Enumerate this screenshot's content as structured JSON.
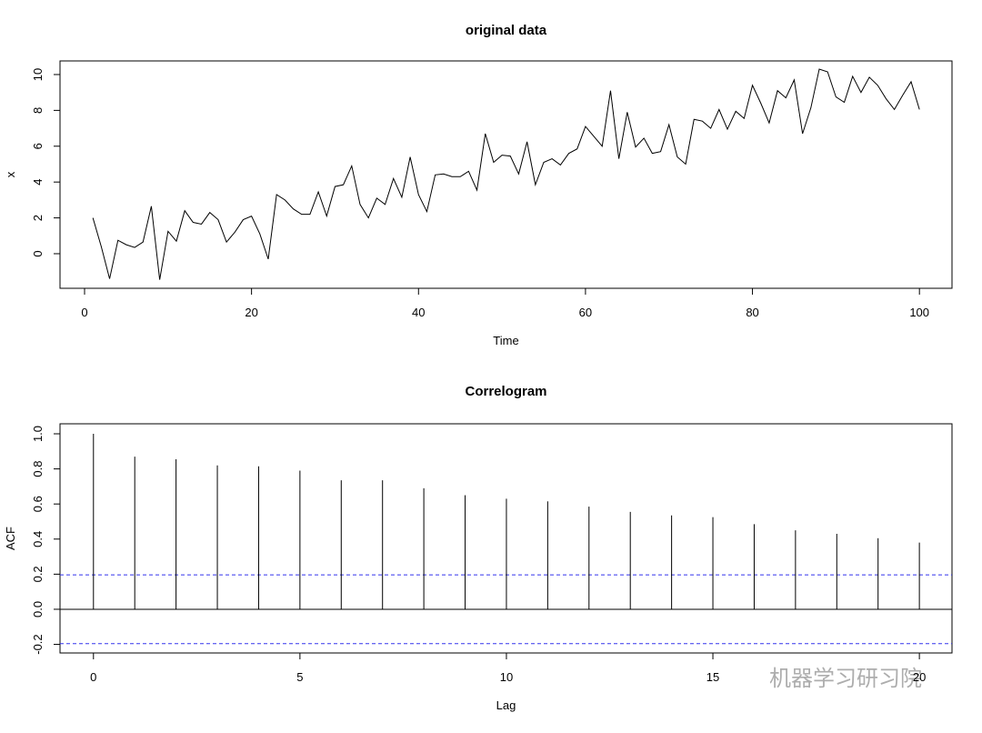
{
  "chart_data": [
    {
      "type": "line",
      "title": "original data",
      "x_label": "Time",
      "y_label": "x",
      "x": [
        1,
        2,
        3,
        4,
        5,
        6,
        7,
        8,
        9,
        10,
        11,
        12,
        13,
        14,
        15,
        16,
        17,
        18,
        19,
        20,
        21,
        22,
        23,
        24,
        25,
        26,
        27,
        28,
        29,
        30,
        31,
        32,
        33,
        34,
        35,
        36,
        37,
        38,
        39,
        40,
        41,
        42,
        43,
        44,
        45,
        46,
        47,
        48,
        49,
        50,
        51,
        52,
        53,
        54,
        55,
        56,
        57,
        58,
        59,
        60,
        61,
        62,
        63,
        64,
        65,
        66,
        67,
        68,
        69,
        70,
        71,
        72,
        73,
        74,
        75,
        76,
        77,
        78,
        79,
        80,
        81,
        82,
        83,
        84,
        85,
        86,
        87,
        88,
        89,
        90,
        91,
        92,
        93,
        94,
        95,
        96,
        97,
        98,
        99,
        100
      ],
      "series": [
        {
          "color": "#000000",
          "values": [
            2.0,
            0.4,
            -1.4,
            0.75,
            0.5,
            0.35,
            0.65,
            2.65,
            -1.45,
            1.25,
            0.7,
            2.4,
            1.75,
            1.65,
            2.3,
            1.9,
            0.65,
            1.2,
            1.9,
            2.1,
            1.1,
            -0.3,
            3.3,
            3.0,
            2.5,
            2.2,
            2.2,
            3.45,
            2.1,
            3.75,
            3.85,
            4.9,
            2.75,
            2.0,
            3.1,
            2.75,
            4.2,
            3.15,
            5.4,
            3.3,
            2.35,
            4.4,
            4.45,
            4.3,
            4.3,
            4.6,
            3.55,
            6.7,
            5.1,
            5.5,
            5.45,
            4.45,
            6.25,
            3.85,
            5.1,
            5.3,
            4.95,
            5.6,
            5.85,
            7.1,
            6.55,
            6.0,
            9.1,
            5.3,
            7.9,
            5.95,
            6.45,
            5.6,
            5.7,
            7.2,
            5.4,
            5.0,
            7.5,
            7.4,
            7.0,
            8.05,
            6.95,
            7.95,
            7.55,
            9.4,
            8.4,
            7.3,
            9.1,
            8.7,
            9.7,
            6.7,
            8.15,
            10.3,
            10.15,
            8.75,
            8.45,
            9.9,
            9.0,
            9.85,
            9.4,
            8.65,
            8.05,
            8.85,
            9.6,
            8.05
          ]
        }
      ],
      "xlim": [
        -2.94,
        103.9
      ],
      "ylim": [
        -1.93,
        10.76
      ],
      "xticks": [
        0,
        20,
        40,
        60,
        80,
        100
      ],
      "yticks": [
        0,
        2,
        4,
        6,
        8,
        10
      ]
    },
    {
      "type": "stem",
      "title": "Correlogram",
      "x_label": "Lag",
      "y_label": "ACF",
      "x": [
        0,
        1,
        2,
        3,
        4,
        5,
        6,
        7,
        8,
        9,
        10,
        11,
        12,
        13,
        14,
        15,
        16,
        17,
        18,
        19,
        20
      ],
      "series": [
        {
          "color": "#000000",
          "values": [
            1.0,
            0.87,
            0.855,
            0.82,
            0.815,
            0.79,
            0.735,
            0.735,
            0.69,
            0.65,
            0.63,
            0.615,
            0.585,
            0.555,
            0.535,
            0.525,
            0.485,
            0.45,
            0.43,
            0.405,
            0.38
          ]
        }
      ],
      "ci_lines": [
        0.196,
        -0.196
      ],
      "ci_color": "#3333ee",
      "xlim": [
        -0.81,
        20.79
      ],
      "ylim": [
        -0.249,
        1.057
      ],
      "xticks": [
        0,
        5,
        10,
        15,
        20
      ],
      "yticks": [
        -0.2,
        {
          "value": 0,
          "label": "0.0"
        },
        0.2,
        0.4,
        0.6,
        0.8,
        {
          "value": 1,
          "label": "1.0"
        }
      ]
    }
  ],
  "watermark": "机器学习研习院"
}
